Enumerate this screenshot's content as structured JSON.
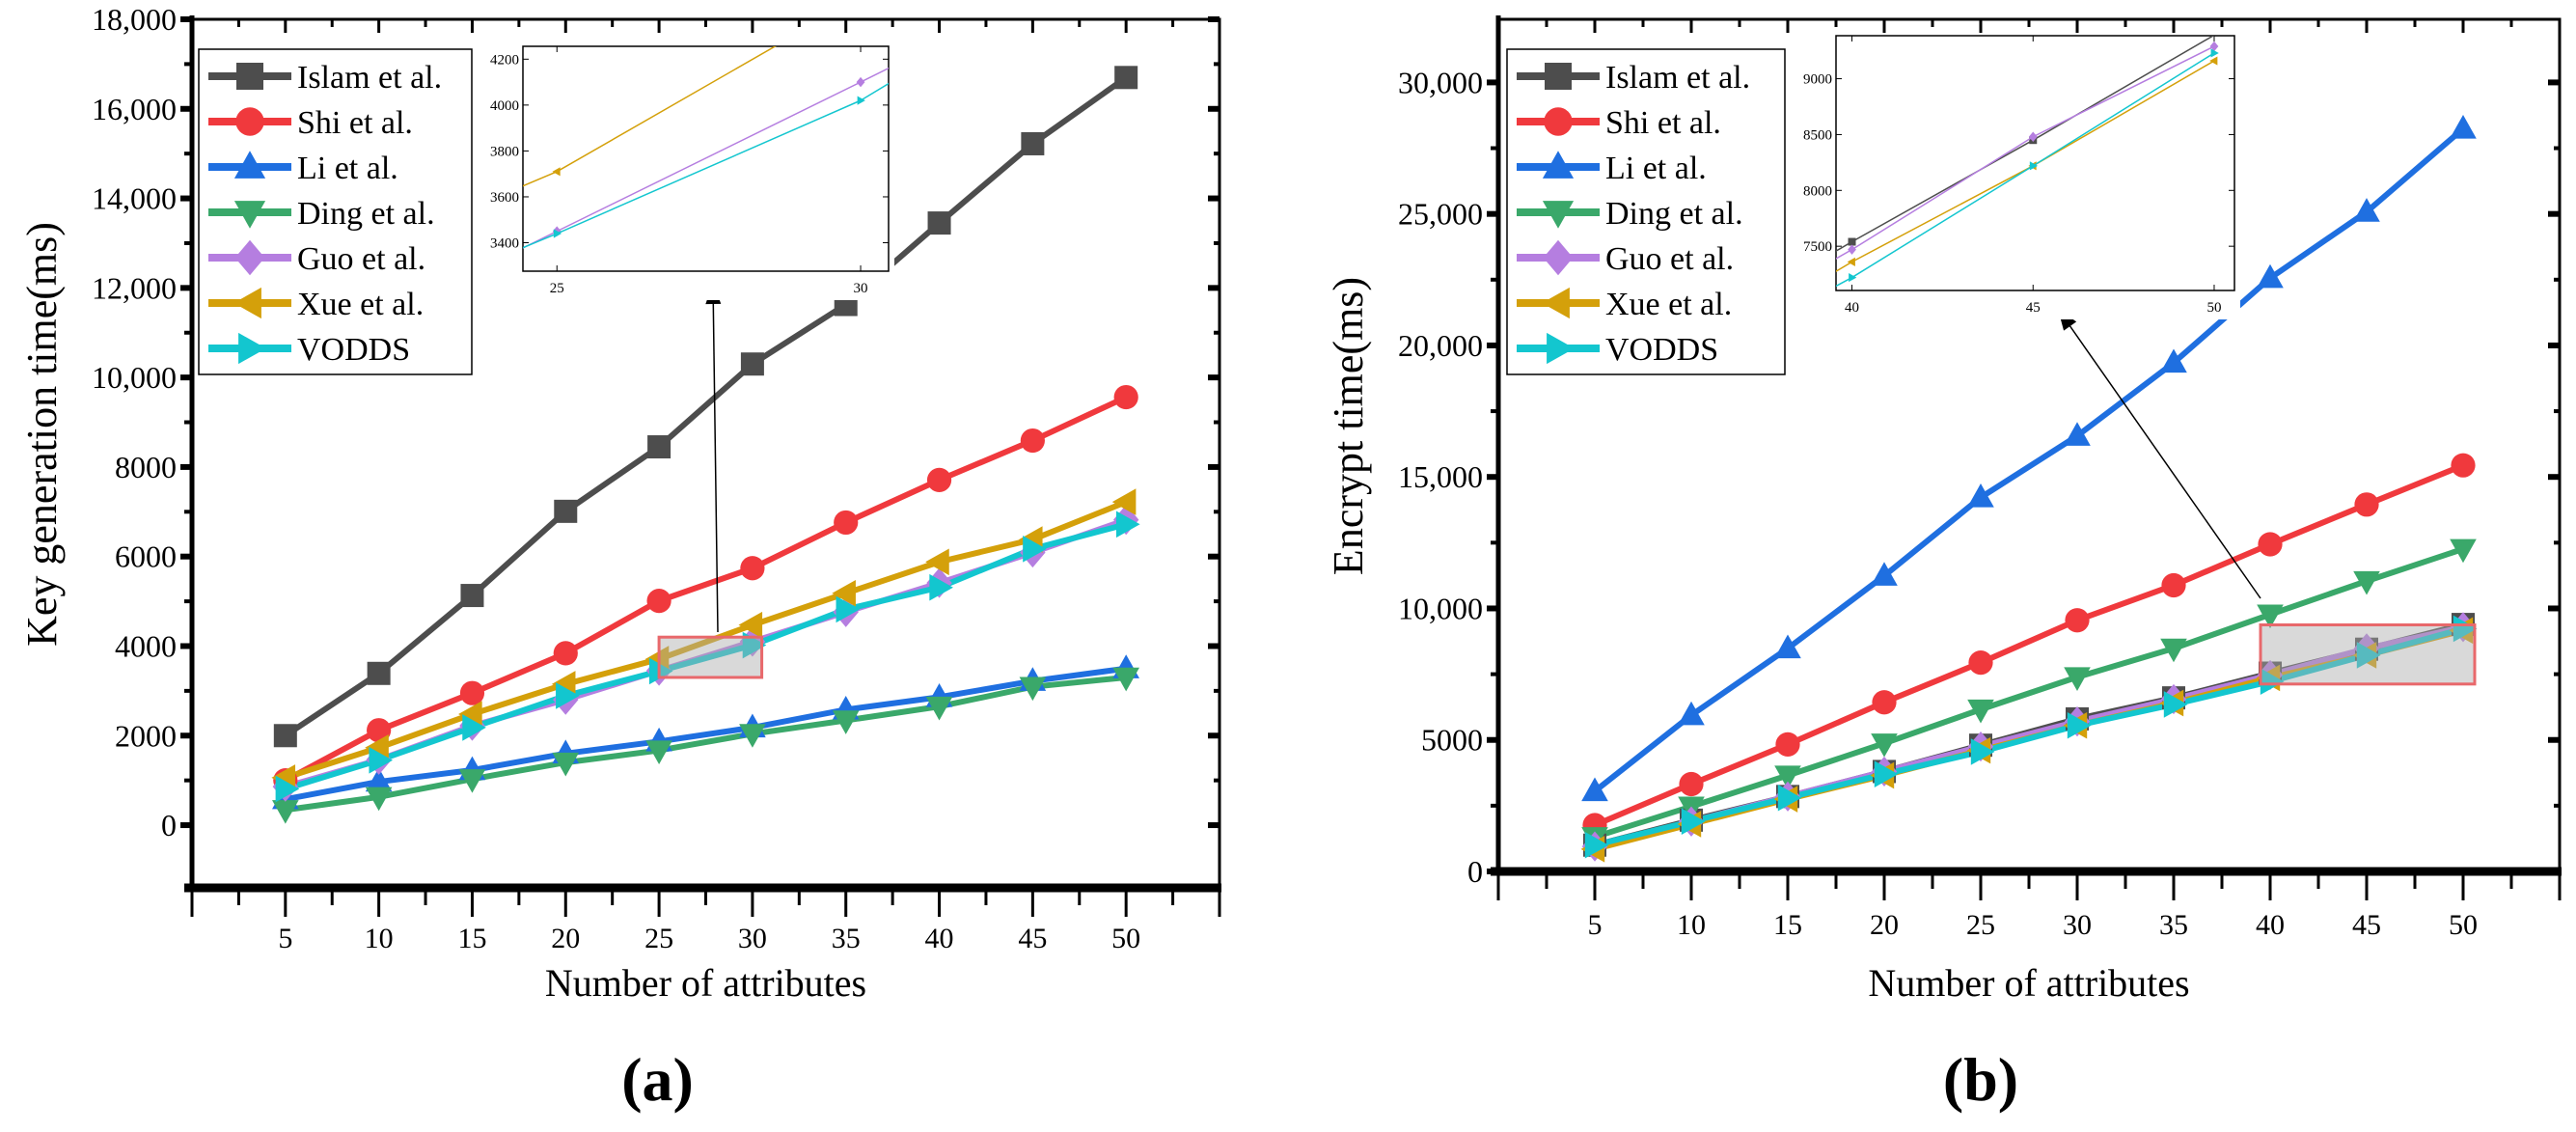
{
  "series_styles": [
    {
      "name": "Islam et al.",
      "color": "#4d4d4d",
      "marker": "square"
    },
    {
      "name": "Shi et al.",
      "color": "#f0393d",
      "marker": "circle"
    },
    {
      "name": "Li et al.",
      "color": "#1f6fe0",
      "marker": "triangle-up"
    },
    {
      "name": "Ding et al.",
      "color": "#3aa86a",
      "marker": "triangle-down"
    },
    {
      "name": "Guo et al.",
      "color": "#b57ee0",
      "marker": "diamond"
    },
    {
      "name": "Xue et al.",
      "color": "#d4a00a",
      "marker": "triangle-left"
    },
    {
      "name": "VODDS",
      "color": "#13c6cf",
      "marker": "triangle-right"
    }
  ],
  "chart_data": [
    {
      "type": "line",
      "panel_label": "(a)",
      "panel_letter": "a",
      "xlabel": "Number of attributes",
      "ylabel": "Key generation time(ms)",
      "x": [
        5,
        10,
        15,
        20,
        25,
        30,
        35,
        40,
        45,
        50
      ],
      "xlim": [
        0,
        55
      ],
      "ylim": [
        -1400,
        18000
      ],
      "xticks": [
        5,
        10,
        15,
        20,
        25,
        30,
        35,
        40,
        45,
        50
      ],
      "yticks": [
        0,
        2000,
        4000,
        6000,
        8000,
        10000,
        12000,
        14000,
        16000,
        18000
      ],
      "ytick_labels": [
        "0",
        "2000",
        "4000",
        "6000",
        "8000",
        "10,000",
        "12,000",
        "14,000",
        "16,000",
        "18,000"
      ],
      "legend_position": "top-left",
      "series": [
        {
          "name": "Islam et al.",
          "values": [
            2000,
            3390,
            5130,
            7010,
            8450,
            10300,
            11630,
            13450,
            15220,
            16700
          ]
        },
        {
          "name": "Shi et al.",
          "values": [
            1000,
            2120,
            2950,
            3840,
            5010,
            5740,
            6760,
            7710,
            8590,
            9560
          ]
        },
        {
          "name": "Li et al.",
          "values": [
            580,
            970,
            1230,
            1600,
            1870,
            2180,
            2580,
            2860,
            3220,
            3500
          ]
        },
        {
          "name": "Ding et al.",
          "values": [
            340,
            630,
            1030,
            1400,
            1670,
            2040,
            2340,
            2650,
            3090,
            3300
          ]
        },
        {
          "name": "Guo et al.",
          "values": [
            860,
            1460,
            2220,
            2800,
            3450,
            4100,
            4760,
            5410,
            6090,
            6820
          ]
        },
        {
          "name": "Xue et al.",
          "values": [
            1060,
            1730,
            2480,
            3150,
            3710,
            4470,
            5180,
            5880,
            6380,
            7220
          ]
        },
        {
          "name": "VODDS",
          "values": [
            810,
            1450,
            2180,
            2890,
            3440,
            4020,
            4820,
            5310,
            6170,
            6720
          ]
        }
      ],
      "inset": {
        "xlim": [
          24.44,
          30.46
        ],
        "ylim": [
          3276,
          4256
        ],
        "xticks": [
          25,
          30
        ],
        "yticks": [
          3400,
          3600,
          3800,
          4000,
          4200
        ],
        "zoom_region": {
          "x": [
            25,
            30.5
          ],
          "y": [
            3300,
            4200
          ]
        }
      }
    },
    {
      "type": "line",
      "panel_label": "(b)",
      "panel_letter": "b",
      "xlabel": "Number of attributes",
      "ylabel": "Encrypt time(ms)",
      "x": [
        5,
        10,
        15,
        20,
        25,
        30,
        35,
        40,
        45,
        50
      ],
      "xlim": [
        0,
        55
      ],
      "ylim": [
        0,
        32400
      ],
      "xticks": [
        5,
        10,
        15,
        20,
        25,
        30,
        35,
        40,
        45,
        50
      ],
      "yticks": [
        0,
        5000,
        10000,
        15000,
        20000,
        25000,
        30000
      ],
      "ytick_labels": [
        "0",
        "5000",
        "10,000",
        "15,000",
        "20,000",
        "25,000",
        "30,000"
      ],
      "legend_position": "top-left",
      "series": [
        {
          "name": "Islam et al.",
          "values": [
            1000,
            1950,
            2850,
            3800,
            4800,
            5800,
            6600,
            7540,
            8450,
            9390
          ]
        },
        {
          "name": "Shi et al.",
          "values": [
            1760,
            3320,
            4830,
            6430,
            7940,
            9550,
            10880,
            12440,
            13950,
            15440
          ]
        },
        {
          "name": "Li et al.",
          "values": [
            3050,
            5940,
            8480,
            11240,
            14220,
            16560,
            19340,
            22560,
            25080,
            28240
          ]
        },
        {
          "name": "Ding et al.",
          "values": [
            1310,
            2470,
            3650,
            4870,
            6160,
            7390,
            8480,
            9770,
            11040,
            12260
          ]
        },
        {
          "name": "Guo et al.",
          "values": [
            950,
            1900,
            2850,
            3800,
            4750,
            5700,
            6550,
            7470,
            8480,
            9290
          ]
        },
        {
          "name": "Xue et al.",
          "values": [
            850,
            1800,
            2750,
            3650,
            4600,
            5550,
            6400,
            7360,
            8220,
            9160
          ]
        },
        {
          "name": "VODDS",
          "values": [
            1000,
            1900,
            2800,
            3700,
            4550,
            5550,
            6350,
            7220,
            8220,
            9230
          ]
        }
      ],
      "inset": {
        "xlim": [
          39.56,
          50.56
        ],
        "ylim": [
          7104,
          9385
        ],
        "xticks": [
          40,
          45,
          50
        ],
        "yticks": [
          7500,
          8000,
          8500,
          9000
        ],
        "zoom_region": {
          "x": [
            39.5,
            50.6
          ],
          "y": [
            7125,
            9375
          ]
        }
      }
    }
  ]
}
